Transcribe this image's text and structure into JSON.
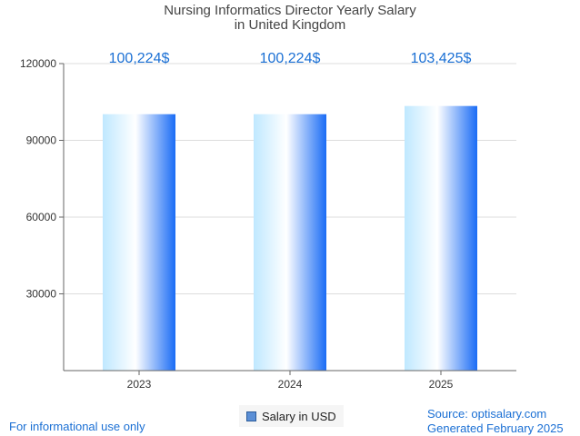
{
  "chart_data": {
    "type": "bar",
    "title": "Nursing Informatics Director Yearly Salary",
    "subtitle": "in United Kingdom",
    "categories": [
      "2023",
      "2024",
      "2025"
    ],
    "series": [
      {
        "name": "Salary in USD",
        "values": [
          100224,
          100224,
          103425
        ]
      }
    ],
    "data_labels": [
      "100,224$",
      "100,224$",
      "103,425$"
    ],
    "y_ticks": [
      "30000",
      "60000",
      "90000",
      "120000"
    ],
    "ylim": [
      0,
      120000
    ],
    "grid": true,
    "legend_position": "bottom-center",
    "colors": {
      "bar_light": "#bfe8ff",
      "bar_mid": "#ffffff",
      "bar_dark": "#1a6cf5",
      "label": "#1a6fd4",
      "grid": "#dddddd"
    }
  },
  "footer": {
    "left_text": "For informational use only",
    "source": "Source: optisalary.com",
    "generated": "Generated February 2025"
  }
}
